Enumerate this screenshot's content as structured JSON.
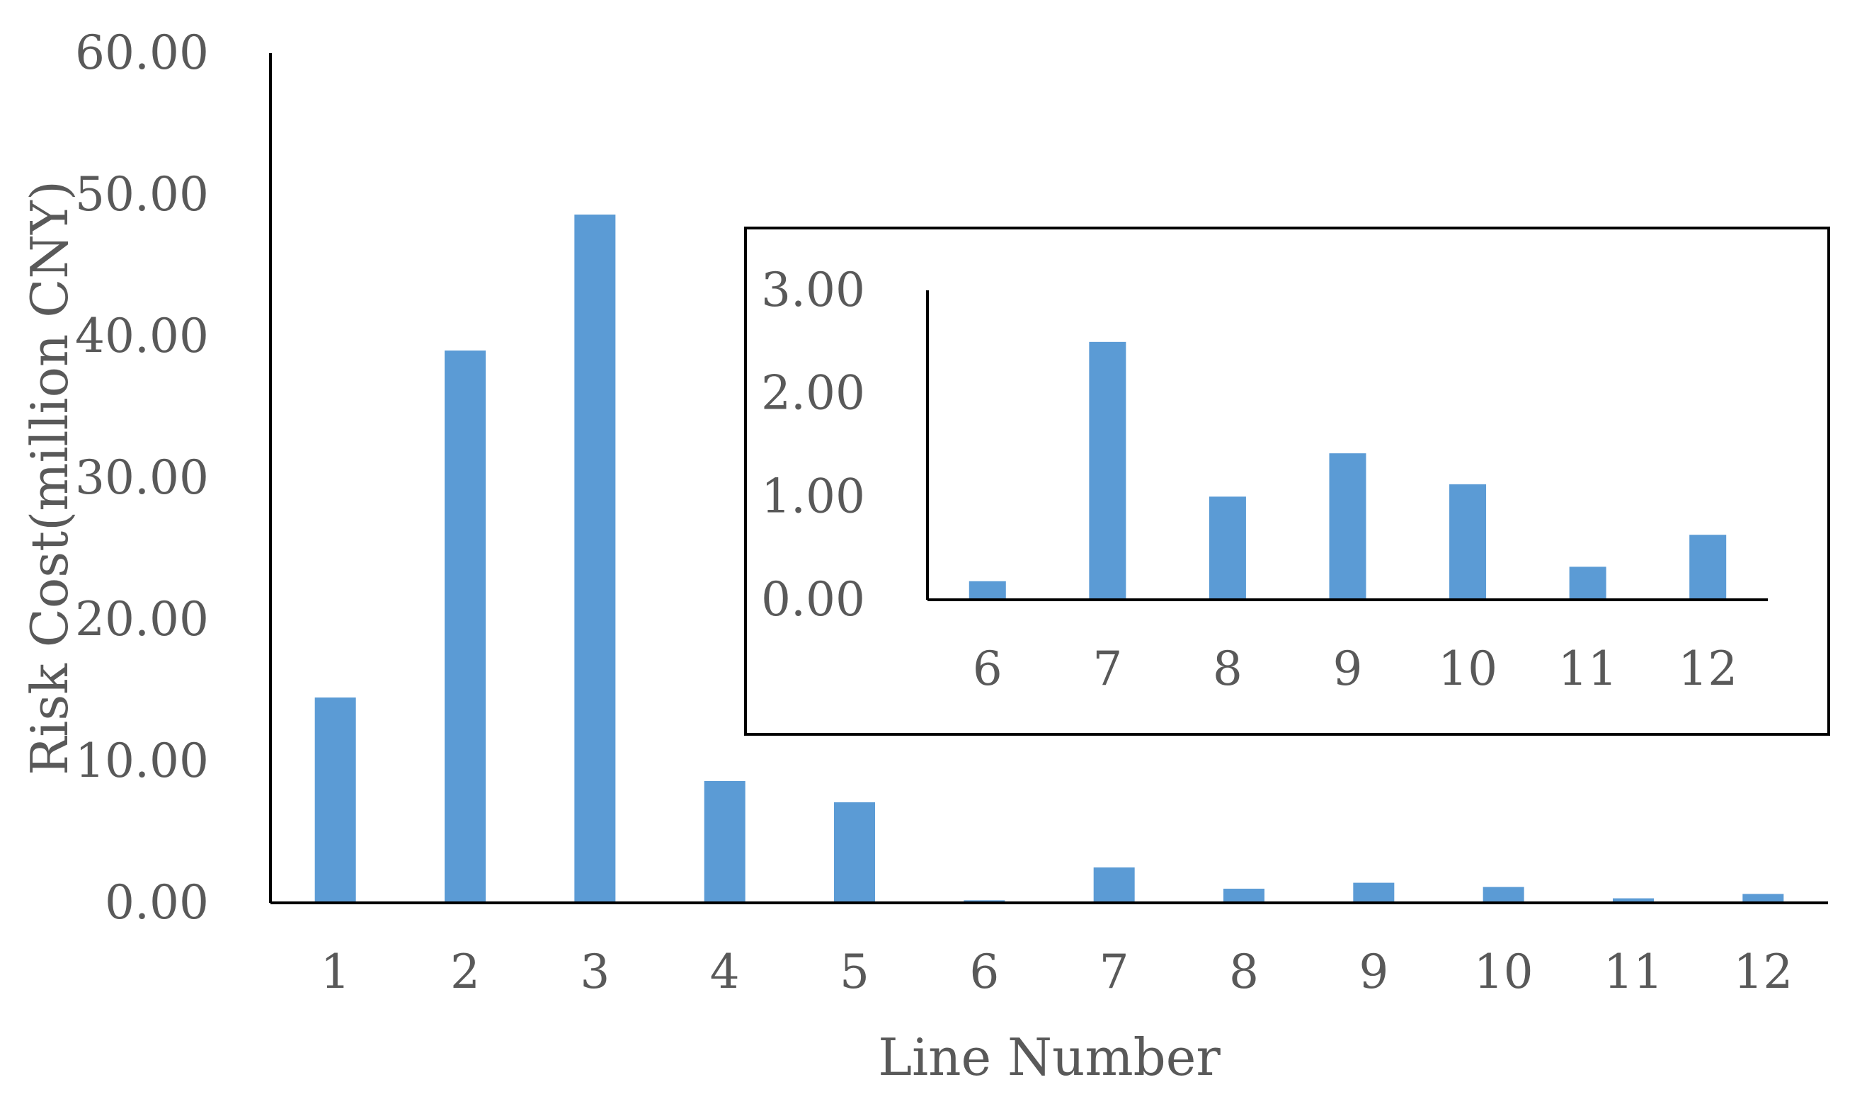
{
  "chart_data": [
    {
      "type": "bar",
      "categories": [
        "1",
        "2",
        "3",
        "4",
        "5",
        "6",
        "7",
        "8",
        "9",
        "10",
        "11",
        "12"
      ],
      "values": [
        14.5,
        39.0,
        48.6,
        8.6,
        7.1,
        0.18,
        2.5,
        1.0,
        1.42,
        1.12,
        0.32,
        0.63
      ],
      "title": "",
      "xlabel": "Line Number",
      "ylabel": "Risk Cost(million CNY)",
      "ylim": [
        0,
        60
      ],
      "yticks": [
        "0.00",
        "10.00",
        "20.00",
        "30.00",
        "40.00",
        "50.00",
        "60.00"
      ],
      "grid": false,
      "legend": "none",
      "bar_color": "#5B9BD5"
    },
    {
      "type": "bar",
      "categories": [
        "6",
        "7",
        "8",
        "9",
        "10",
        "11",
        "12"
      ],
      "values": [
        0.18,
        2.5,
        1.0,
        1.42,
        1.12,
        0.32,
        0.63
      ],
      "title": "",
      "xlabel": "",
      "ylabel": "",
      "ylim": [
        0,
        3
      ],
      "yticks": [
        "0.00",
        "1.00",
        "2.00",
        "3.00"
      ],
      "grid": false,
      "legend": "none",
      "bar_color": "#5B9BD5"
    }
  ]
}
